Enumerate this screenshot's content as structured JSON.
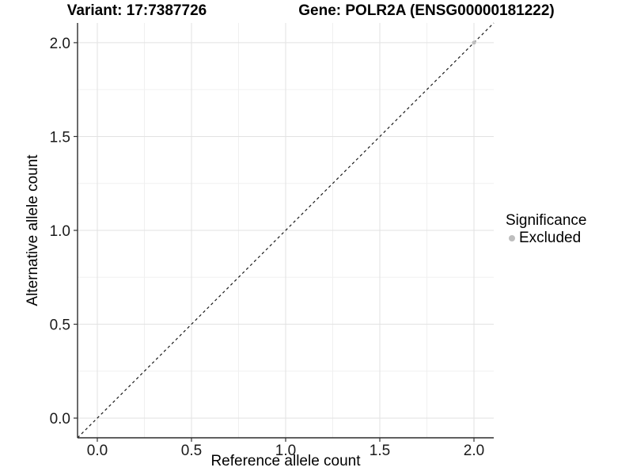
{
  "chart_data": {
    "type": "scatter",
    "title_left": "Variant: 17:7387726",
    "title_right": "Gene: POLR2A (ENSG00000181222)",
    "xlabel": "Reference allele count",
    "ylabel": "Alternative allele count",
    "xlim": [
      -0.105,
      2.105
    ],
    "ylim": [
      -0.105,
      2.105
    ],
    "major_ticks": [
      0.0,
      0.5,
      1.0,
      1.5,
      2.0
    ],
    "minor_gridlines": [
      0.25,
      0.75,
      1.25,
      1.75
    ],
    "tick_decimals": 1,
    "grid": {
      "major_color": "#e2e2e2",
      "minor_color": "#f0f0f0",
      "shown": true
    },
    "identity_line": {
      "style": "dashed",
      "color": "#1a1a1a",
      "from": [
        -0.105,
        -0.105
      ],
      "to": [
        2.105,
        2.105
      ]
    },
    "series": [
      {
        "name": "Excluded",
        "color": "#bebebe",
        "marker": "circle",
        "size": 2.5,
        "points": [
          [
            2.0,
            2.0
          ]
        ]
      }
    ],
    "legend": {
      "position": "right",
      "title": "Significance",
      "entries": [
        {
          "label": "Excluded",
          "color": "#bebebe"
        }
      ]
    },
    "axis_style": {
      "line_color": "#2b2b2b",
      "tick_color": "#333333",
      "label_color": "#1a1a1a"
    }
  }
}
